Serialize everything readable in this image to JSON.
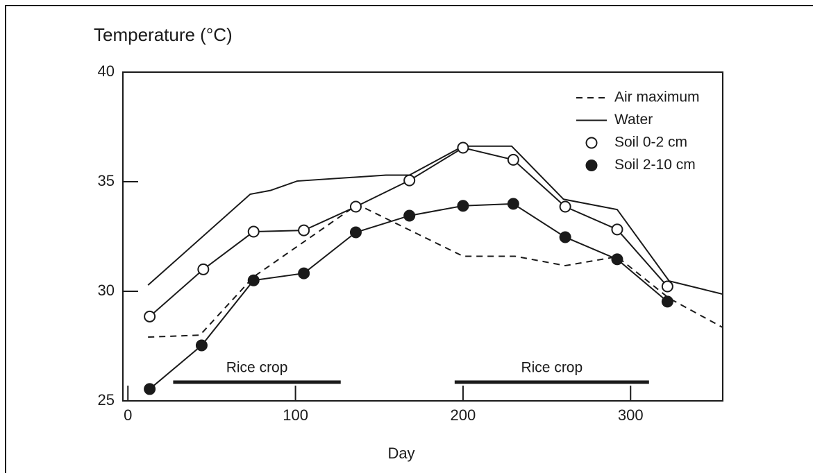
{
  "chart_data": {
    "type": "line",
    "ylabel": "Temperature (°C)",
    "xlabel": "Day",
    "xlim": [
      -3,
      355
    ],
    "xticks": [
      0,
      100,
      200,
      300
    ],
    "ylim": [
      25,
      40
    ],
    "yticks": [
      25,
      30,
      35,
      40
    ],
    "grid": false,
    "legend": "upper right",
    "series": [
      {
        "name": "Air maximum",
        "color": "#1a1a1a",
        "style": "dashed",
        "marker": "none",
        "x": [
          12,
          43,
          75,
          137,
          200,
          231,
          261,
          292,
          323,
          355
        ],
        "values": [
          27.91,
          28.0,
          30.66,
          33.96,
          31.6,
          31.6,
          31.17,
          31.58,
          29.68,
          28.35
        ]
      },
      {
        "name": "Water",
        "color": "#1a1a1a",
        "style": "solid",
        "marker": "none",
        "x": [
          12,
          73,
          85,
          101,
          154,
          168,
          200,
          229,
          260,
          292,
          323,
          355
        ],
        "values": [
          30.28,
          34.43,
          34.6,
          35.03,
          35.3,
          35.3,
          36.62,
          36.62,
          34.2,
          33.73,
          30.47,
          29.87
        ]
      },
      {
        "name": "Soil 0-2 cm",
        "color": "#1a1a1a",
        "style": "solid",
        "marker": "open",
        "x": [
          13,
          45,
          75,
          105,
          136,
          168,
          200,
          230,
          261,
          292,
          322
        ],
        "values": [
          28.85,
          31.0,
          32.72,
          32.78,
          33.86,
          35.06,
          36.55,
          36.0,
          33.86,
          32.82,
          30.22
        ]
      },
      {
        "name": "Soil 2-10 cm",
        "color": "#1a1a1a",
        "style": "solid",
        "marker": "filled",
        "x": [
          13,
          44,
          75,
          105,
          136,
          168,
          200,
          230,
          261,
          292,
          322
        ],
        "values": [
          25.54,
          27.53,
          30.5,
          30.82,
          32.69,
          33.45,
          33.9,
          33.99,
          32.47,
          31.46,
          29.53
        ]
      }
    ],
    "annotations": [
      {
        "label": "Rice crop",
        "x": [
          27,
          127
        ]
      },
      {
        "label": "Rice crop",
        "x": [
          195,
          311
        ]
      }
    ]
  }
}
